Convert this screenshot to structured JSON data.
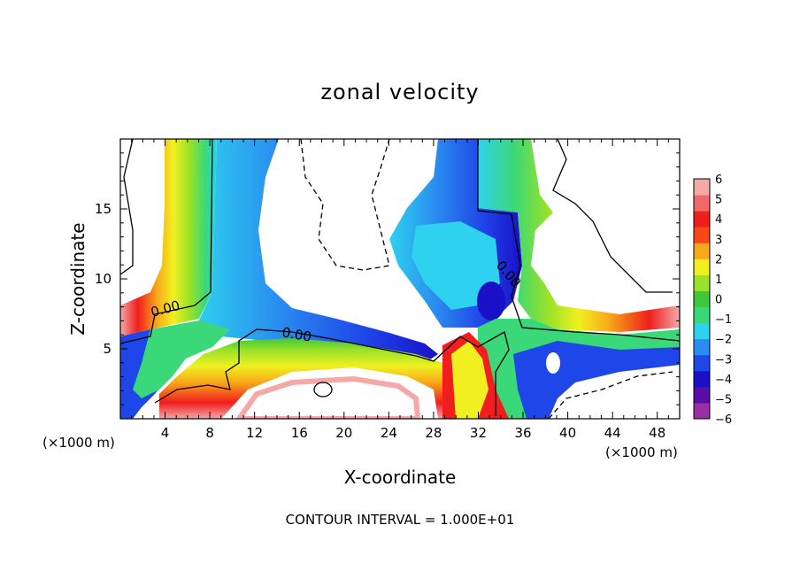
{
  "chart_data": {
    "type": "heatmap",
    "title": "zonal velocity",
    "xlabel": "X-coordinate",
    "ylabel": "Z-coordinate",
    "x_unit": "(×1000 m)",
    "y_unit": "(×1000 m)",
    "xlim": [
      0,
      50
    ],
    "ylim": [
      0,
      20
    ],
    "x_ticks": [
      "4",
      "8",
      "12",
      "16",
      "20",
      "24",
      "28",
      "32",
      "36",
      "40",
      "44",
      "48"
    ],
    "y_ticks": [
      "5",
      "10",
      "15"
    ],
    "colorbar": {
      "ticks": [
        "6",
        "5",
        "4",
        "3",
        "2",
        "1",
        "0",
        "−1",
        "−2",
        "−3",
        "−4",
        "−5",
        "−6"
      ],
      "colors": [
        "#9b2fa8",
        "#5a0ea8",
        "#1a10c8",
        "#1e46e8",
        "#2a8cf0",
        "#2ed2ee",
        "#3ad878",
        "#40c83c",
        "#9ae228",
        "#f0f020",
        "#f8a818",
        "#f84818",
        "#f01e1e",
        "#f06868",
        "#f4a8a8"
      ]
    },
    "contour_labels": [
      "0.00",
      "0.00",
      "0.00"
    ],
    "footer": "CONTOUR INTERVAL = 1.000E+01"
  }
}
